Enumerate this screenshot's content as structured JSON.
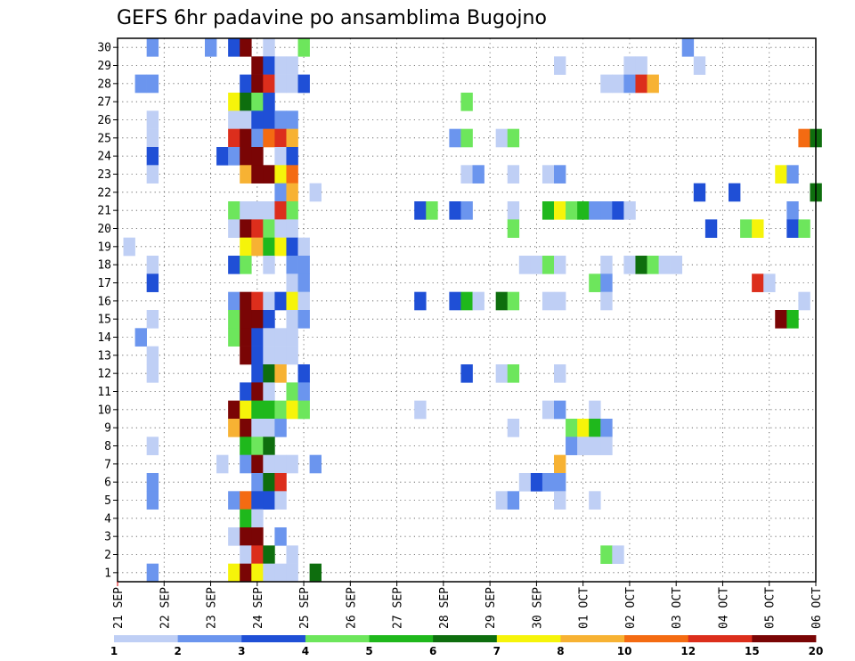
{
  "chart_data": {
    "type": "heatmap",
    "title": "GEFS 6hr padavine po ansamblima Bugojno",
    "x_tick_labels": [
      "21 SEP",
      "22 SEP",
      "23 SEP",
      "24 SEP",
      "25 SEP",
      "26 SEP",
      "27 SEP",
      "28 SEP",
      "29 SEP",
      "30 SEP",
      "01 OCT",
      "02 OCT",
      "03 OCT",
      "04 OCT",
      "05 OCT",
      "06 OCT"
    ],
    "y_tick_labels": [
      "1",
      "2",
      "3",
      "4",
      "5",
      "6",
      "7",
      "8",
      "9",
      "10",
      "11",
      "12",
      "13",
      "14",
      "15",
      "16",
      "17",
      "18",
      "19",
      "20",
      "21",
      "22",
      "23",
      "24",
      "25",
      "26",
      "27",
      "28",
      "29",
      "30"
    ],
    "xlim": [
      0,
      60
    ],
    "ylim": [
      0.5,
      30.5
    ],
    "steps_per_day": 4,
    "grid": true,
    "colorbar": {
      "colors": [
        "#bfcff5",
        "#6b95ee",
        "#1f4fd6",
        "#6de65c",
        "#1fb81c",
        "#0e6e0e",
        "#f6f40a",
        "#f7b233",
        "#f46b12",
        "#dc2e1c",
        "#7a0505"
      ],
      "labels": [
        "1",
        "2",
        "3",
        "4",
        "5",
        "6",
        "7",
        "8",
        "10",
        "12",
        "15",
        "20"
      ],
      "labeled_boundaries": [
        0,
        1,
        2,
        3,
        4,
        5,
        6,
        7,
        8,
        9,
        10,
        11
      ]
    },
    "cells": [
      [
        30,
        3,
        1
      ],
      [
        30,
        8,
        1
      ],
      [
        30,
        10,
        2
      ],
      [
        30,
        11,
        10
      ],
      [
        30,
        13,
        0
      ],
      [
        30,
        16,
        3
      ],
      [
        30,
        49,
        1
      ],
      [
        29,
        12,
        10
      ],
      [
        29,
        13,
        2
      ],
      [
        29,
        14,
        0
      ],
      [
        29,
        15,
        0
      ],
      [
        29,
        38,
        0
      ],
      [
        29,
        44,
        0
      ],
      [
        29,
        45,
        0
      ],
      [
        29,
        50,
        0
      ],
      [
        28,
        2,
        1
      ],
      [
        28,
        3,
        1
      ],
      [
        28,
        11,
        2
      ],
      [
        28,
        12,
        10
      ],
      [
        28,
        13,
        9
      ],
      [
        28,
        14,
        0
      ],
      [
        28,
        15,
        0
      ],
      [
        28,
        16,
        2
      ],
      [
        28,
        42,
        0
      ],
      [
        28,
        43,
        0
      ],
      [
        28,
        44,
        1
      ],
      [
        28,
        45,
        9
      ],
      [
        28,
        46,
        7
      ],
      [
        27,
        10,
        6
      ],
      [
        27,
        11,
        5
      ],
      [
        27,
        12,
        3
      ],
      [
        27,
        13,
        2
      ],
      [
        27,
        30,
        3
      ],
      [
        26,
        3,
        0
      ],
      [
        26,
        10,
        0
      ],
      [
        26,
        11,
        0
      ],
      [
        26,
        12,
        2
      ],
      [
        26,
        13,
        2
      ],
      [
        26,
        14,
        1
      ],
      [
        26,
        15,
        1
      ],
      [
        25,
        3,
        0
      ],
      [
        25,
        10,
        9
      ],
      [
        25,
        11,
        10
      ],
      [
        25,
        12,
        1
      ],
      [
        25,
        13,
        8
      ],
      [
        25,
        14,
        9
      ],
      [
        25,
        15,
        7
      ],
      [
        25,
        29,
        1
      ],
      [
        25,
        30,
        3
      ],
      [
        25,
        33,
        0
      ],
      [
        25,
        34,
        3
      ],
      [
        25,
        59,
        8
      ],
      [
        25,
        60,
        5
      ],
      [
        24,
        3,
        2
      ],
      [
        24,
        9,
        2
      ],
      [
        24,
        10,
        1
      ],
      [
        24,
        11,
        10
      ],
      [
        24,
        12,
        10
      ],
      [
        24,
        14,
        0
      ],
      [
        24,
        15,
        2
      ],
      [
        23,
        3,
        0
      ],
      [
        23,
        11,
        7
      ],
      [
        23,
        12,
        10
      ],
      [
        23,
        13,
        10
      ],
      [
        23,
        14,
        6
      ],
      [
        23,
        15,
        8
      ],
      [
        23,
        30,
        0
      ],
      [
        23,
        31,
        1
      ],
      [
        23,
        34,
        0
      ],
      [
        23,
        37,
        0
      ],
      [
        23,
        38,
        1
      ],
      [
        23,
        57,
        6
      ],
      [
        23,
        58,
        1
      ],
      [
        22,
        14,
        1
      ],
      [
        22,
        15,
        7
      ],
      [
        22,
        17,
        0
      ],
      [
        22,
        50,
        2
      ],
      [
        22,
        53,
        2
      ],
      [
        22,
        60,
        5
      ],
      [
        21,
        10,
        3
      ],
      [
        21,
        11,
        0
      ],
      [
        21,
        12,
        0
      ],
      [
        21,
        13,
        0
      ],
      [
        21,
        14,
        9
      ],
      [
        21,
        15,
        3
      ],
      [
        21,
        26,
        2
      ],
      [
        21,
        27,
        3
      ],
      [
        21,
        29,
        2
      ],
      [
        21,
        30,
        1
      ],
      [
        21,
        34,
        0
      ],
      [
        21,
        37,
        4
      ],
      [
        21,
        38,
        6
      ],
      [
        21,
        39,
        3
      ],
      [
        21,
        40,
        4
      ],
      [
        21,
        41,
        1
      ],
      [
        21,
        42,
        1
      ],
      [
        21,
        43,
        2
      ],
      [
        21,
        44,
        0
      ],
      [
        21,
        58,
        1
      ],
      [
        20,
        10,
        0
      ],
      [
        20,
        11,
        10
      ],
      [
        20,
        12,
        9
      ],
      [
        20,
        13,
        3
      ],
      [
        20,
        14,
        0
      ],
      [
        20,
        15,
        0
      ],
      [
        20,
        34,
        3
      ],
      [
        20,
        51,
        2
      ],
      [
        20,
        54,
        3
      ],
      [
        20,
        55,
        6
      ],
      [
        20,
        58,
        2
      ],
      [
        20,
        59,
        3
      ],
      [
        19,
        1,
        0
      ],
      [
        19,
        11,
        6
      ],
      [
        19,
        12,
        7
      ],
      [
        19,
        13,
        4
      ],
      [
        19,
        14,
        6
      ],
      [
        19,
        15,
        2
      ],
      [
        19,
        16,
        0
      ],
      [
        18,
        3,
        0
      ],
      [
        18,
        10,
        2
      ],
      [
        18,
        11,
        3
      ],
      [
        18,
        13,
        0
      ],
      [
        18,
        15,
        1
      ],
      [
        18,
        16,
        1
      ],
      [
        18,
        35,
        0
      ],
      [
        18,
        36,
        0
      ],
      [
        18,
        37,
        3
      ],
      [
        18,
        38,
        0
      ],
      [
        18,
        42,
        0
      ],
      [
        18,
        44,
        0
      ],
      [
        18,
        45,
        5
      ],
      [
        18,
        46,
        3
      ],
      [
        18,
        47,
        0
      ],
      [
        18,
        48,
        0
      ],
      [
        17,
        3,
        2
      ],
      [
        17,
        15,
        0
      ],
      [
        17,
        16,
        1
      ],
      [
        17,
        41,
        3
      ],
      [
        17,
        42,
        1
      ],
      [
        17,
        55,
        9
      ],
      [
        17,
        56,
        0
      ],
      [
        16,
        10,
        1
      ],
      [
        16,
        11,
        10
      ],
      [
        16,
        12,
        9
      ],
      [
        16,
        13,
        0
      ],
      [
        16,
        14,
        2
      ],
      [
        16,
        15,
        6
      ],
      [
        16,
        16,
        0
      ],
      [
        16,
        26,
        2
      ],
      [
        16,
        29,
        2
      ],
      [
        16,
        30,
        4
      ],
      [
        16,
        31,
        0
      ],
      [
        16,
        33,
        5
      ],
      [
        16,
        34,
        3
      ],
      [
        16,
        37,
        0
      ],
      [
        16,
        38,
        0
      ],
      [
        16,
        42,
        0
      ],
      [
        16,
        59,
        0
      ],
      [
        15,
        3,
        0
      ],
      [
        15,
        10,
        3
      ],
      [
        15,
        11,
        10
      ],
      [
        15,
        12,
        10
      ],
      [
        15,
        13,
        2
      ],
      [
        15,
        15,
        0
      ],
      [
        15,
        16,
        1
      ],
      [
        15,
        57,
        10
      ],
      [
        15,
        58,
        4
      ],
      [
        14,
        2,
        1
      ],
      [
        14,
        10,
        3
      ],
      [
        14,
        11,
        10
      ],
      [
        14,
        12,
        2
      ],
      [
        14,
        13,
        0
      ],
      [
        14,
        14,
        0
      ],
      [
        14,
        15,
        0
      ],
      [
        13,
        3,
        0
      ],
      [
        13,
        11,
        10
      ],
      [
        13,
        12,
        2
      ],
      [
        13,
        13,
        0
      ],
      [
        13,
        14,
        0
      ],
      [
        13,
        15,
        0
      ],
      [
        12,
        3,
        0
      ],
      [
        12,
        12,
        2
      ],
      [
        12,
        13,
        5
      ],
      [
        12,
        14,
        7
      ],
      [
        12,
        16,
        2
      ],
      [
        12,
        30,
        2
      ],
      [
        12,
        33,
        0
      ],
      [
        12,
        34,
        3
      ],
      [
        12,
        38,
        0
      ],
      [
        11,
        11,
        2
      ],
      [
        11,
        12,
        10
      ],
      [
        11,
        13,
        0
      ],
      [
        11,
        15,
        3
      ],
      [
        11,
        16,
        1
      ],
      [
        10,
        10,
        10
      ],
      [
        10,
        11,
        6
      ],
      [
        10,
        12,
        4
      ],
      [
        10,
        13,
        4
      ],
      [
        10,
        14,
        3
      ],
      [
        10,
        15,
        6
      ],
      [
        10,
        16,
        3
      ],
      [
        10,
        26,
        0
      ],
      [
        10,
        37,
        0
      ],
      [
        10,
        38,
        1
      ],
      [
        10,
        41,
        0
      ],
      [
        9,
        10,
        7
      ],
      [
        9,
        11,
        10
      ],
      [
        9,
        12,
        0
      ],
      [
        9,
        13,
        0
      ],
      [
        9,
        14,
        1
      ],
      [
        9,
        34,
        0
      ],
      [
        9,
        39,
        3
      ],
      [
        9,
        40,
        6
      ],
      [
        9,
        41,
        4
      ],
      [
        9,
        42,
        1
      ],
      [
        8,
        3,
        0
      ],
      [
        8,
        11,
        4
      ],
      [
        8,
        12,
        3
      ],
      [
        8,
        13,
        5
      ],
      [
        8,
        39,
        1
      ],
      [
        8,
        40,
        0
      ],
      [
        8,
        41,
        0
      ],
      [
        8,
        42,
        0
      ],
      [
        7,
        9,
        0
      ],
      [
        7,
        11,
        1
      ],
      [
        7,
        12,
        10
      ],
      [
        7,
        13,
        0
      ],
      [
        7,
        14,
        0
      ],
      [
        7,
        15,
        0
      ],
      [
        7,
        17,
        1
      ],
      [
        7,
        38,
        7
      ],
      [
        6,
        3,
        1
      ],
      [
        6,
        12,
        1
      ],
      [
        6,
        13,
        5
      ],
      [
        6,
        14,
        9
      ],
      [
        6,
        35,
        0
      ],
      [
        6,
        36,
        2
      ],
      [
        6,
        37,
        1
      ],
      [
        6,
        38,
        1
      ],
      [
        5,
        3,
        1
      ],
      [
        5,
        10,
        1
      ],
      [
        5,
        11,
        8
      ],
      [
        5,
        12,
        2
      ],
      [
        5,
        13,
        2
      ],
      [
        5,
        14,
        0
      ],
      [
        5,
        33,
        0
      ],
      [
        5,
        34,
        1
      ],
      [
        5,
        38,
        0
      ],
      [
        5,
        41,
        0
      ],
      [
        4,
        11,
        4
      ],
      [
        4,
        12,
        0
      ],
      [
        3,
        10,
        0
      ],
      [
        3,
        11,
        10
      ],
      [
        3,
        12,
        10
      ],
      [
        3,
        14,
        1
      ],
      [
        2,
        11,
        0
      ],
      [
        2,
        12,
        9
      ],
      [
        2,
        13,
        5
      ],
      [
        2,
        15,
        0
      ],
      [
        2,
        42,
        3
      ],
      [
        2,
        43,
        0
      ],
      [
        1,
        3,
        1
      ],
      [
        1,
        10,
        6
      ],
      [
        1,
        11,
        10
      ],
      [
        1,
        12,
        6
      ],
      [
        1,
        13,
        0
      ],
      [
        1,
        14,
        0
      ],
      [
        1,
        15,
        0
      ],
      [
        1,
        17,
        5
      ]
    ]
  }
}
